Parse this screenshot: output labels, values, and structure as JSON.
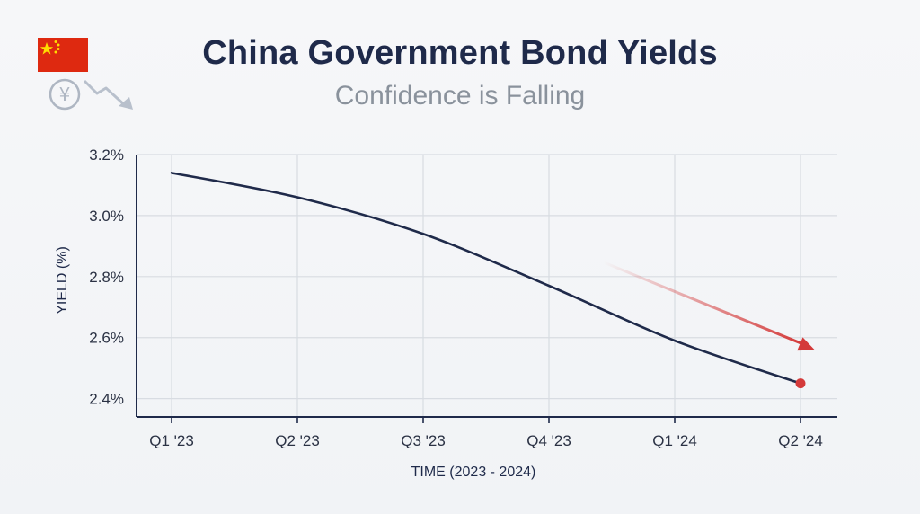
{
  "header": {
    "title": "China Government Bond Yields",
    "subtitle": "Confidence is Falling"
  },
  "icons": {
    "flag": "china-flag-icon",
    "currency": "yen-down-trend-icon"
  },
  "colors": {
    "line": "#1f2a4a",
    "accent": "#d43a3a",
    "grid": "#d8dce2",
    "axis": "#1f2a4a",
    "flag_red": "#de2910",
    "flag_star": "#ffde00"
  },
  "chart_data": {
    "type": "line",
    "title": "China Government Bond Yields",
    "subtitle": "Confidence is Falling",
    "xlabel": "TIME (2023 - 2024)",
    "ylabel": "YIELD (%)",
    "categories": [
      "Q1 '23",
      "Q2 '23",
      "Q3 '23",
      "Q4 '23",
      "Q1 '24",
      "Q2 '24"
    ],
    "series": [
      {
        "values": [
          3.14,
          3.06,
          2.94,
          2.77,
          2.59,
          2.45
        ]
      }
    ],
    "yticks": [
      "2.4%",
      "2.6%",
      "2.8%",
      "3.0%",
      "3.2%"
    ],
    "ytick_values": [
      2.4,
      2.6,
      2.8,
      3.0,
      3.2
    ],
    "ylim": [
      2.34,
      3.2
    ],
    "grid": true,
    "annotations": [
      {
        "type": "trend-arrow",
        "direction": "down",
        "color": "#d43a3a"
      },
      {
        "type": "end-point-marker",
        "category": "Q2 '24",
        "value": 2.45,
        "color": "#d43a3a"
      }
    ]
  }
}
